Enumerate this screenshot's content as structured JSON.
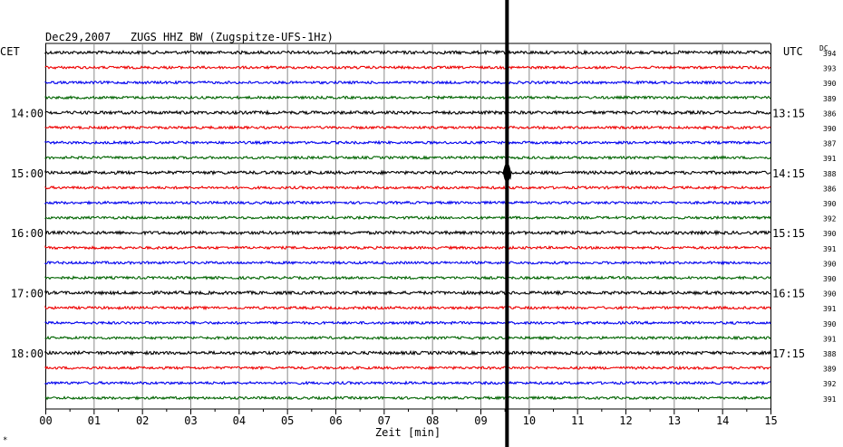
{
  "chart_data": {
    "type": "line",
    "title": "Dec29,2007   ZUGS HHZ BW (Zugspitze-UFS-1Hz)",
    "xlabel": "Zeit [min]",
    "x_ticks": [
      "00",
      "01",
      "02",
      "03",
      "04",
      "05",
      "06",
      "07",
      "08",
      "09",
      "10",
      "11",
      "12",
      "13",
      "14",
      "15"
    ],
    "xlim": [
      0,
      15
    ],
    "grid": true,
    "left_axis_label": "CET",
    "right_axis_label": "UTC",
    "dc_label": "DC",
    "cet_hours": [
      {
        "row": 4,
        "label": "14:00"
      },
      {
        "row": 8,
        "label": "15:00"
      },
      {
        "row": 12,
        "label": "16:00"
      },
      {
        "row": 16,
        "label": "17:00"
      },
      {
        "row": 20,
        "label": "18:00"
      }
    ],
    "utc_hours": [
      {
        "row": 4,
        "label": "13:15"
      },
      {
        "row": 8,
        "label": "14:15"
      },
      {
        "row": 12,
        "label": "15:15"
      },
      {
        "row": 16,
        "label": "16:15"
      },
      {
        "row": 20,
        "label": "17:15"
      }
    ],
    "trace_colors": [
      "#000000",
      "#ee0000",
      "#0000ee",
      "#006400"
    ],
    "dc_values": [
      "394",
      "393",
      "390",
      "389",
      "386",
      "390",
      "387",
      "391",
      "388",
      "386",
      "390",
      "392",
      "390",
      "391",
      "390",
      "390",
      "390",
      "391",
      "390",
      "391",
      "388",
      "389",
      "392",
      "391"
    ],
    "event": {
      "x_min": 9.55,
      "trace_row": 8
    },
    "corner_mark": "*"
  }
}
